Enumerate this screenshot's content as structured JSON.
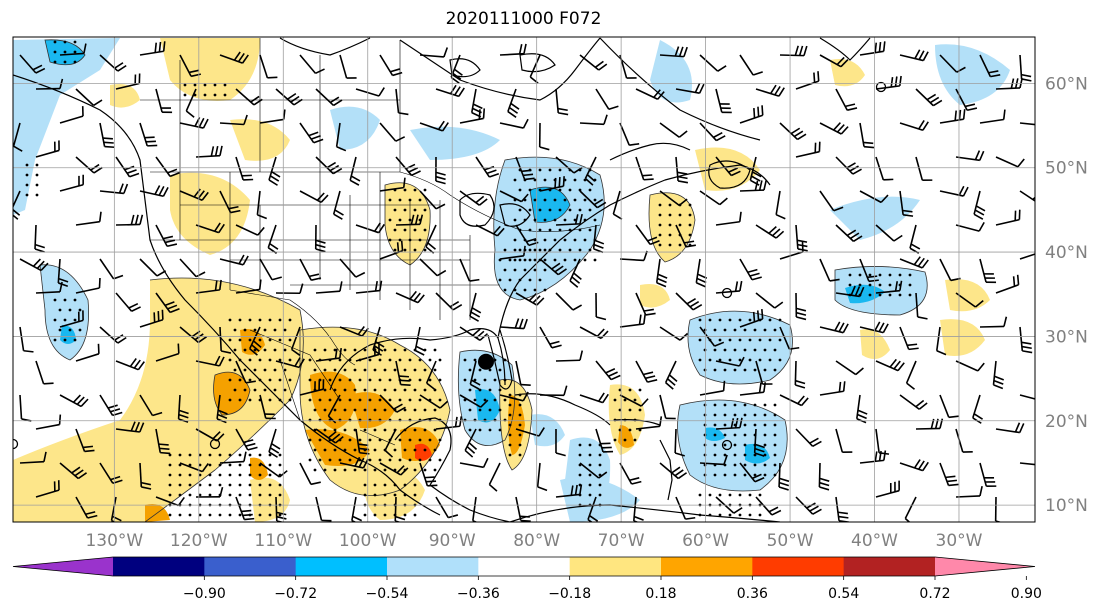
{
  "title": "2020111000 F072",
  "map": {
    "lon_range": [
      -142,
      -21
    ],
    "lat_range": [
      8,
      65.5
    ],
    "lat_ticks": [
      {
        "value": 10,
        "label": "10°N"
      },
      {
        "value": 20,
        "label": "20°N"
      },
      {
        "value": 30,
        "label": "30°N"
      },
      {
        "value": 40,
        "label": "40°N"
      },
      {
        "value": 50,
        "label": "50°N"
      },
      {
        "value": 60,
        "label": "60°N"
      }
    ],
    "lon_ticks": [
      {
        "value": -130,
        "label": "130°W"
      },
      {
        "value": -120,
        "label": "120°W"
      },
      {
        "value": -110,
        "label": "110°W"
      },
      {
        "value": -100,
        "label": "100°W"
      },
      {
        "value": -90,
        "label": "90°W"
      },
      {
        "value": -80,
        "label": "80°W"
      },
      {
        "value": -70,
        "label": "70°W"
      },
      {
        "value": -60,
        "label": "60°W"
      },
      {
        "value": -50,
        "label": "50°W"
      },
      {
        "value": -40,
        "label": "40°W"
      },
      {
        "value": -30,
        "label": "30°W"
      }
    ],
    "storm_marker": {
      "lon": -86,
      "lat": 27,
      "color": "#000000"
    },
    "grid": true
  },
  "colorbar": {
    "colors": [
      "#9a33cc",
      "#00007f",
      "#3a5fcd",
      "#00bfff",
      "#b0e0fa",
      "#ffffff",
      "#ffe680",
      "#ffa500",
      "#ff3c00",
      "#b22222",
      "#ff88aa"
    ],
    "labels": [
      "−0.90",
      "−0.72",
      "−0.54",
      "−0.36",
      "−0.18",
      "0.18",
      "0.36",
      "0.54",
      "0.72",
      "0.90"
    ],
    "extend": "both"
  },
  "palette": {
    "blue_light": "#b3e0f8",
    "blue_mid": "#1ab8f0",
    "yellow_light": "#fde68a",
    "orange": "#f5a100",
    "red_orange": "#ff3c00"
  }
}
